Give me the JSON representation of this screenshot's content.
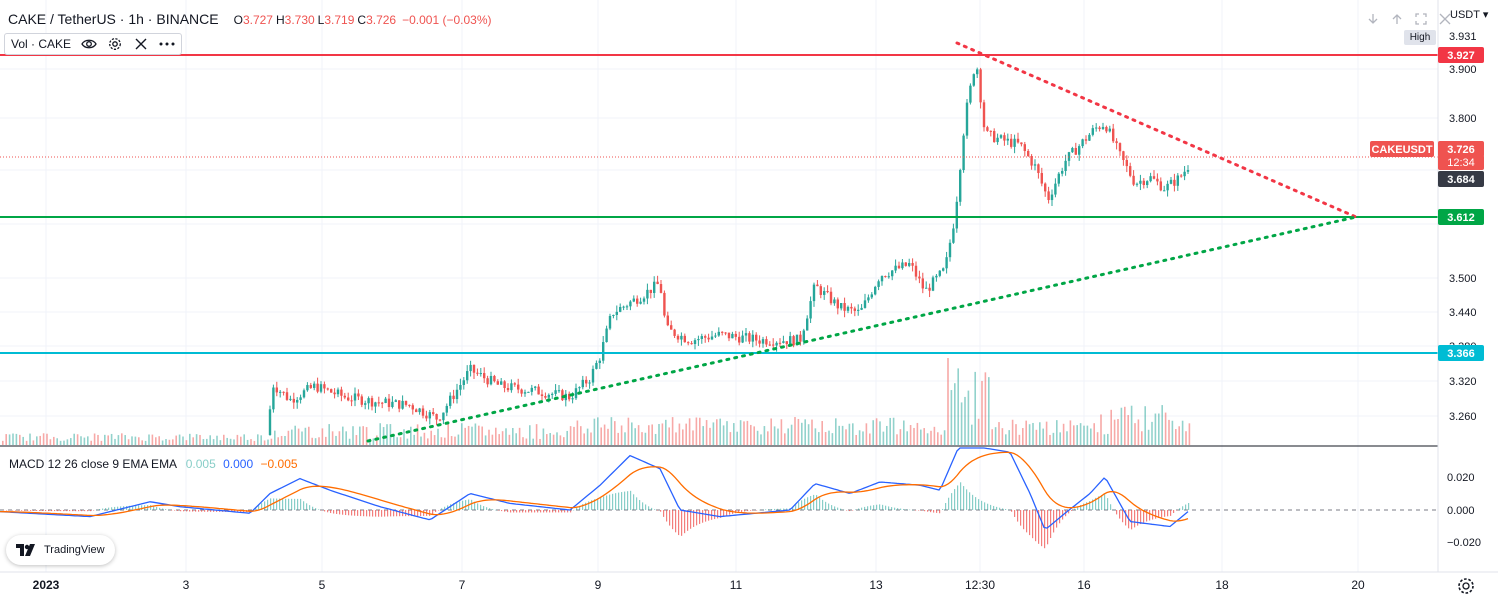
{
  "header": {
    "symbol": "CAKE / TetherUS · 1h · BINANCE",
    "ohlc": [
      {
        "key": "O",
        "value": "3.727"
      },
      {
        "key": "H",
        "value": "3.730"
      },
      {
        "key": "L",
        "value": "3.719"
      },
      {
        "key": "C",
        "value": "3.726"
      }
    ],
    "change": "−0.001 (−0.03%)"
  },
  "volume_indicator": {
    "label": "Vol · CAKE"
  },
  "macd": {
    "label": "MACD 12 26 close 9 EMA EMA",
    "hist": "0.005",
    "macd": "0.000",
    "signal": "−0.005"
  },
  "branding": {
    "logo_text": "TradingView"
  },
  "price_axis": {
    "currency": "USDT",
    "ticks": [
      "3.931",
      "3.900",
      "3.800",
      "3.500",
      "3.440",
      "3.380",
      "3.320",
      "3.260"
    ],
    "high_tag": "High",
    "labels": [
      {
        "text": "3.927",
        "color": "#f23645"
      },
      {
        "text": "CAKEUSDT",
        "color": "#ef5350"
      },
      {
        "text": "3.726",
        "color": "#ef5350"
      },
      {
        "text": "12:34",
        "color": "#ef5350"
      },
      {
        "text": "3.684",
        "color": "#363a45"
      },
      {
        "text": "3.612",
        "color": "#00a646"
      },
      {
        "text": "3.366",
        "color": "#00bcd4"
      }
    ]
  },
  "macd_axis": {
    "ticks": [
      "0.020",
      "0.000",
      "−0.020"
    ]
  },
  "time_axis": {
    "ticks": [
      "2023",
      "3",
      "5",
      "7",
      "9",
      "11",
      "13",
      "12:30",
      "16",
      "18",
      "20"
    ]
  },
  "drawings": [
    {
      "name": "resistance-line",
      "price": 3.927,
      "color": "#f23645"
    },
    {
      "name": "support-line",
      "price": 3.612,
      "color": "#00a646"
    },
    {
      "name": "base-line",
      "price": 3.366,
      "color": "#00bcd4"
    }
  ],
  "colors": {
    "up": "#26a69a",
    "down": "#ef5350",
    "macd": "#2962ff",
    "signal": "#ff6d00"
  }
}
